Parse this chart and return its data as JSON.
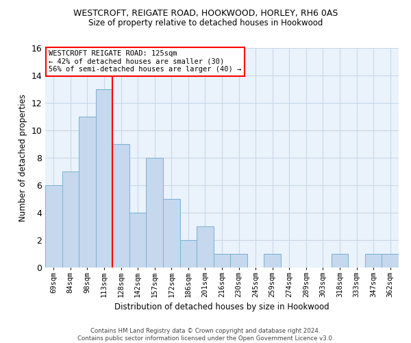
{
  "title": "WESTCROFT, REIGATE ROAD, HOOKWOOD, HORLEY, RH6 0AS",
  "subtitle": "Size of property relative to detached houses in Hookwood",
  "xlabel": "Distribution of detached houses by size in Hookwood",
  "ylabel": "Number of detached properties",
  "categories": [
    "69sqm",
    "84sqm",
    "98sqm",
    "113sqm",
    "128sqm",
    "142sqm",
    "157sqm",
    "172sqm",
    "186sqm",
    "201sqm",
    "216sqm",
    "230sqm",
    "245sqm",
    "259sqm",
    "274sqm",
    "289sqm",
    "303sqm",
    "318sqm",
    "333sqm",
    "347sqm",
    "362sqm"
  ],
  "values": [
    6,
    7,
    11,
    13,
    9,
    4,
    8,
    5,
    2,
    3,
    1,
    1,
    0,
    1,
    0,
    0,
    0,
    1,
    0,
    1,
    1
  ],
  "bar_color": "#c5d8ed",
  "bar_edge_color": "#7ab0d4",
  "grid_color": "#c8d8e8",
  "bg_color": "#eaf2fb",
  "vline_x": 3.5,
  "vline_color": "red",
  "annotation_text": "WESTCROFT REIGATE ROAD: 125sqm\n← 42% of detached houses are smaller (30)\n56% of semi-detached houses are larger (40) →",
  "annotation_box_color": "white",
  "annotation_box_edge": "red",
  "footer": "Contains HM Land Registry data © Crown copyright and database right 2024.\nContains public sector information licensed under the Open Government Licence v3.0.",
  "ylim": [
    0,
    16
  ],
  "yticks": [
    0,
    2,
    4,
    6,
    8,
    10,
    12,
    14,
    16
  ]
}
